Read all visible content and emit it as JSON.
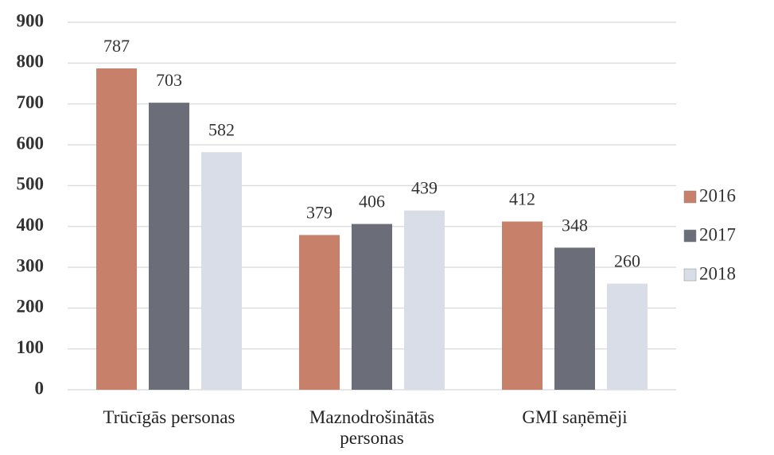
{
  "chart_data": {
    "type": "bar",
    "categories": [
      "Trūcīgās personas",
      "Maznodrošinātās personas",
      "GMI saņēmēji"
    ],
    "series": [
      {
        "name": "2016",
        "color": "#c7806a",
        "values": [
          787,
          379,
          412
        ]
      },
      {
        "name": "2017",
        "color": "#6b6e78",
        "values": [
          703,
          406,
          348
        ]
      },
      {
        "name": "2018",
        "color": "#d9dde7",
        "values": [
          582,
          439,
          260
        ]
      }
    ],
    "ylim": [
      0,
      900
    ],
    "yticks": [
      0,
      100,
      200,
      300,
      400,
      500,
      600,
      700,
      800,
      900
    ],
    "grid": true,
    "legend": "right"
  }
}
